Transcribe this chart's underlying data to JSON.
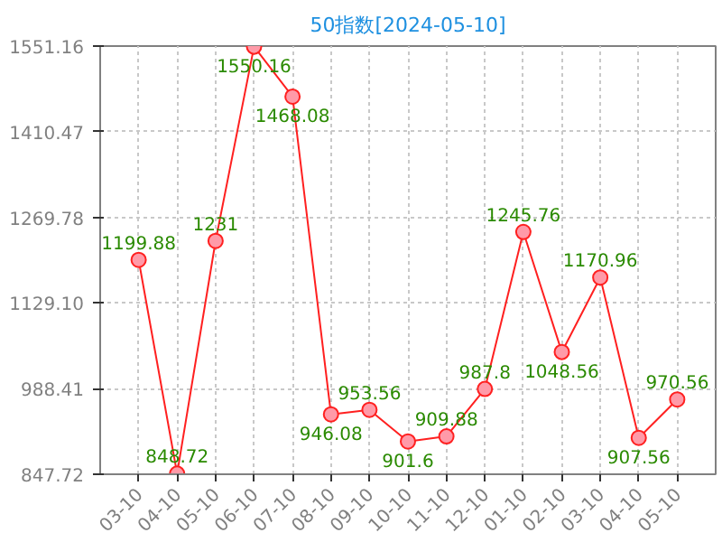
{
  "chart_data": {
    "type": "line",
    "title": "50指数[2024-05-10]",
    "categories": [
      "03-10",
      "04-10",
      "05-10",
      "06-10",
      "07-10",
      "08-10",
      "09-10",
      "10-10",
      "11-10",
      "12-10",
      "01-10",
      "02-10",
      "03-10",
      "04-10",
      "05-10"
    ],
    "series": [
      {
        "color": "#ff2020",
        "values": [
          1199.88,
          848.72,
          1231,
          1550.16,
          1468.08,
          946.08,
          953.56,
          901.6,
          909.88,
          987.8,
          1245.76,
          1048.56,
          1170.96,
          907.56,
          970.56
        ]
      }
    ],
    "ylim": [
      847.72,
      1551.16
    ],
    "yticks": [
      847.72,
      988.41,
      {
        "value": 1129.1,
        "label": "1129.10"
      },
      1269.78,
      1410.47,
      1551.16
    ],
    "grid": true,
    "marker": "circle",
    "line_style": "solid",
    "data_labels": true
  }
}
